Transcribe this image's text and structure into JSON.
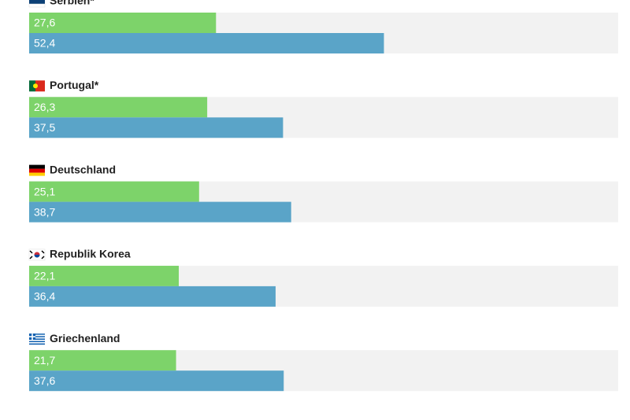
{
  "chart_data": {
    "type": "bar",
    "categories": [
      "Serbien*",
      "Portugal*",
      "Deutschland",
      "Republik Korea",
      "Griechenland"
    ],
    "series": [
      {
        "color": "#7dd36a",
        "values": [
          27.6,
          26.3,
          25.1,
          22.1,
          21.7
        ],
        "value_labels": [
          "27,6",
          "26,3",
          "25,1",
          "22,1",
          "21,7"
        ]
      },
      {
        "color": "#5aa4c8",
        "values": [
          52.4,
          37.5,
          38.7,
          36.4,
          37.6
        ],
        "value_labels": [
          "52,4",
          "37,5",
          "38,7",
          "36,4",
          "37,6"
        ]
      }
    ],
    "xlim": [
      0,
      87
    ]
  }
}
